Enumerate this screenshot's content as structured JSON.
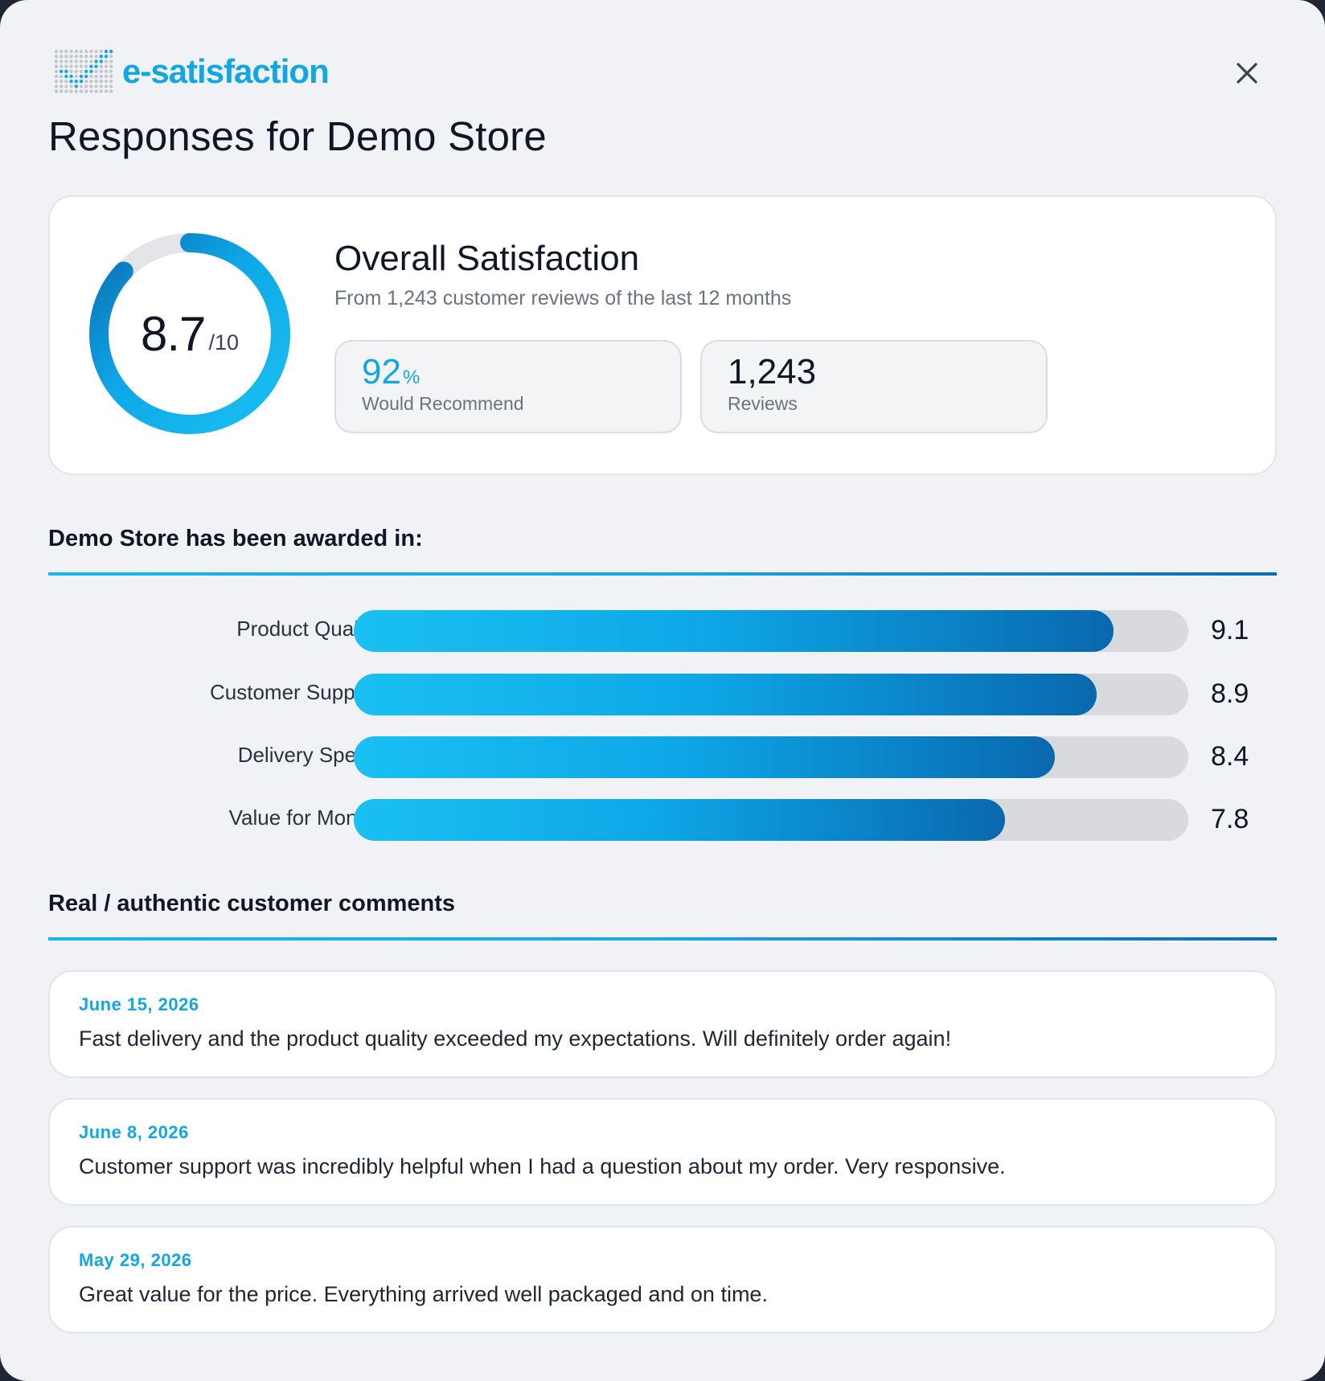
{
  "brand": {
    "name": "e-satisfaction"
  },
  "page": {
    "title": "Responses for Demo Store"
  },
  "overall": {
    "score": "8.7",
    "score_max": "/10",
    "score_fraction": 0.87,
    "title": "Overall Satisfaction",
    "subtitle": "From 1,243 customer reviews of the last 12 months",
    "recommend": {
      "value": "92",
      "unit": "%",
      "label": "Would Recommend"
    },
    "reviews": {
      "value": "1,243",
      "label": "Reviews"
    }
  },
  "awards": {
    "heading": "Demo Store has been awarded in:",
    "scale_max": 10,
    "items": [
      {
        "label": "Product Quality",
        "value": "9.1",
        "score": 9.1
      },
      {
        "label": "Customer Support",
        "value": "8.9",
        "score": 8.9
      },
      {
        "label": "Delivery Speed",
        "value": "8.4",
        "score": 8.4
      },
      {
        "label": "Value for Money",
        "value": "7.8",
        "score": 7.8
      }
    ]
  },
  "comments": {
    "heading": "Real / authentic customer comments",
    "items": [
      {
        "date": "June 15, 2026",
        "text": "Fast delivery and the product quality exceeded my expectations. Will definitely order again!"
      },
      {
        "date": "June 8, 2026",
        "text": "Customer support was incredibly helpful when I had a question about my order. Very responsive."
      },
      {
        "date": "May 29, 2026",
        "text": "Great value for the price. Everything arrived well packaged and on time."
      }
    ]
  },
  "colors": {
    "accent": "#12a6e2",
    "accent_dark": "#0a68ad",
    "text": "#0f1624",
    "track": "#d9dadd"
  }
}
